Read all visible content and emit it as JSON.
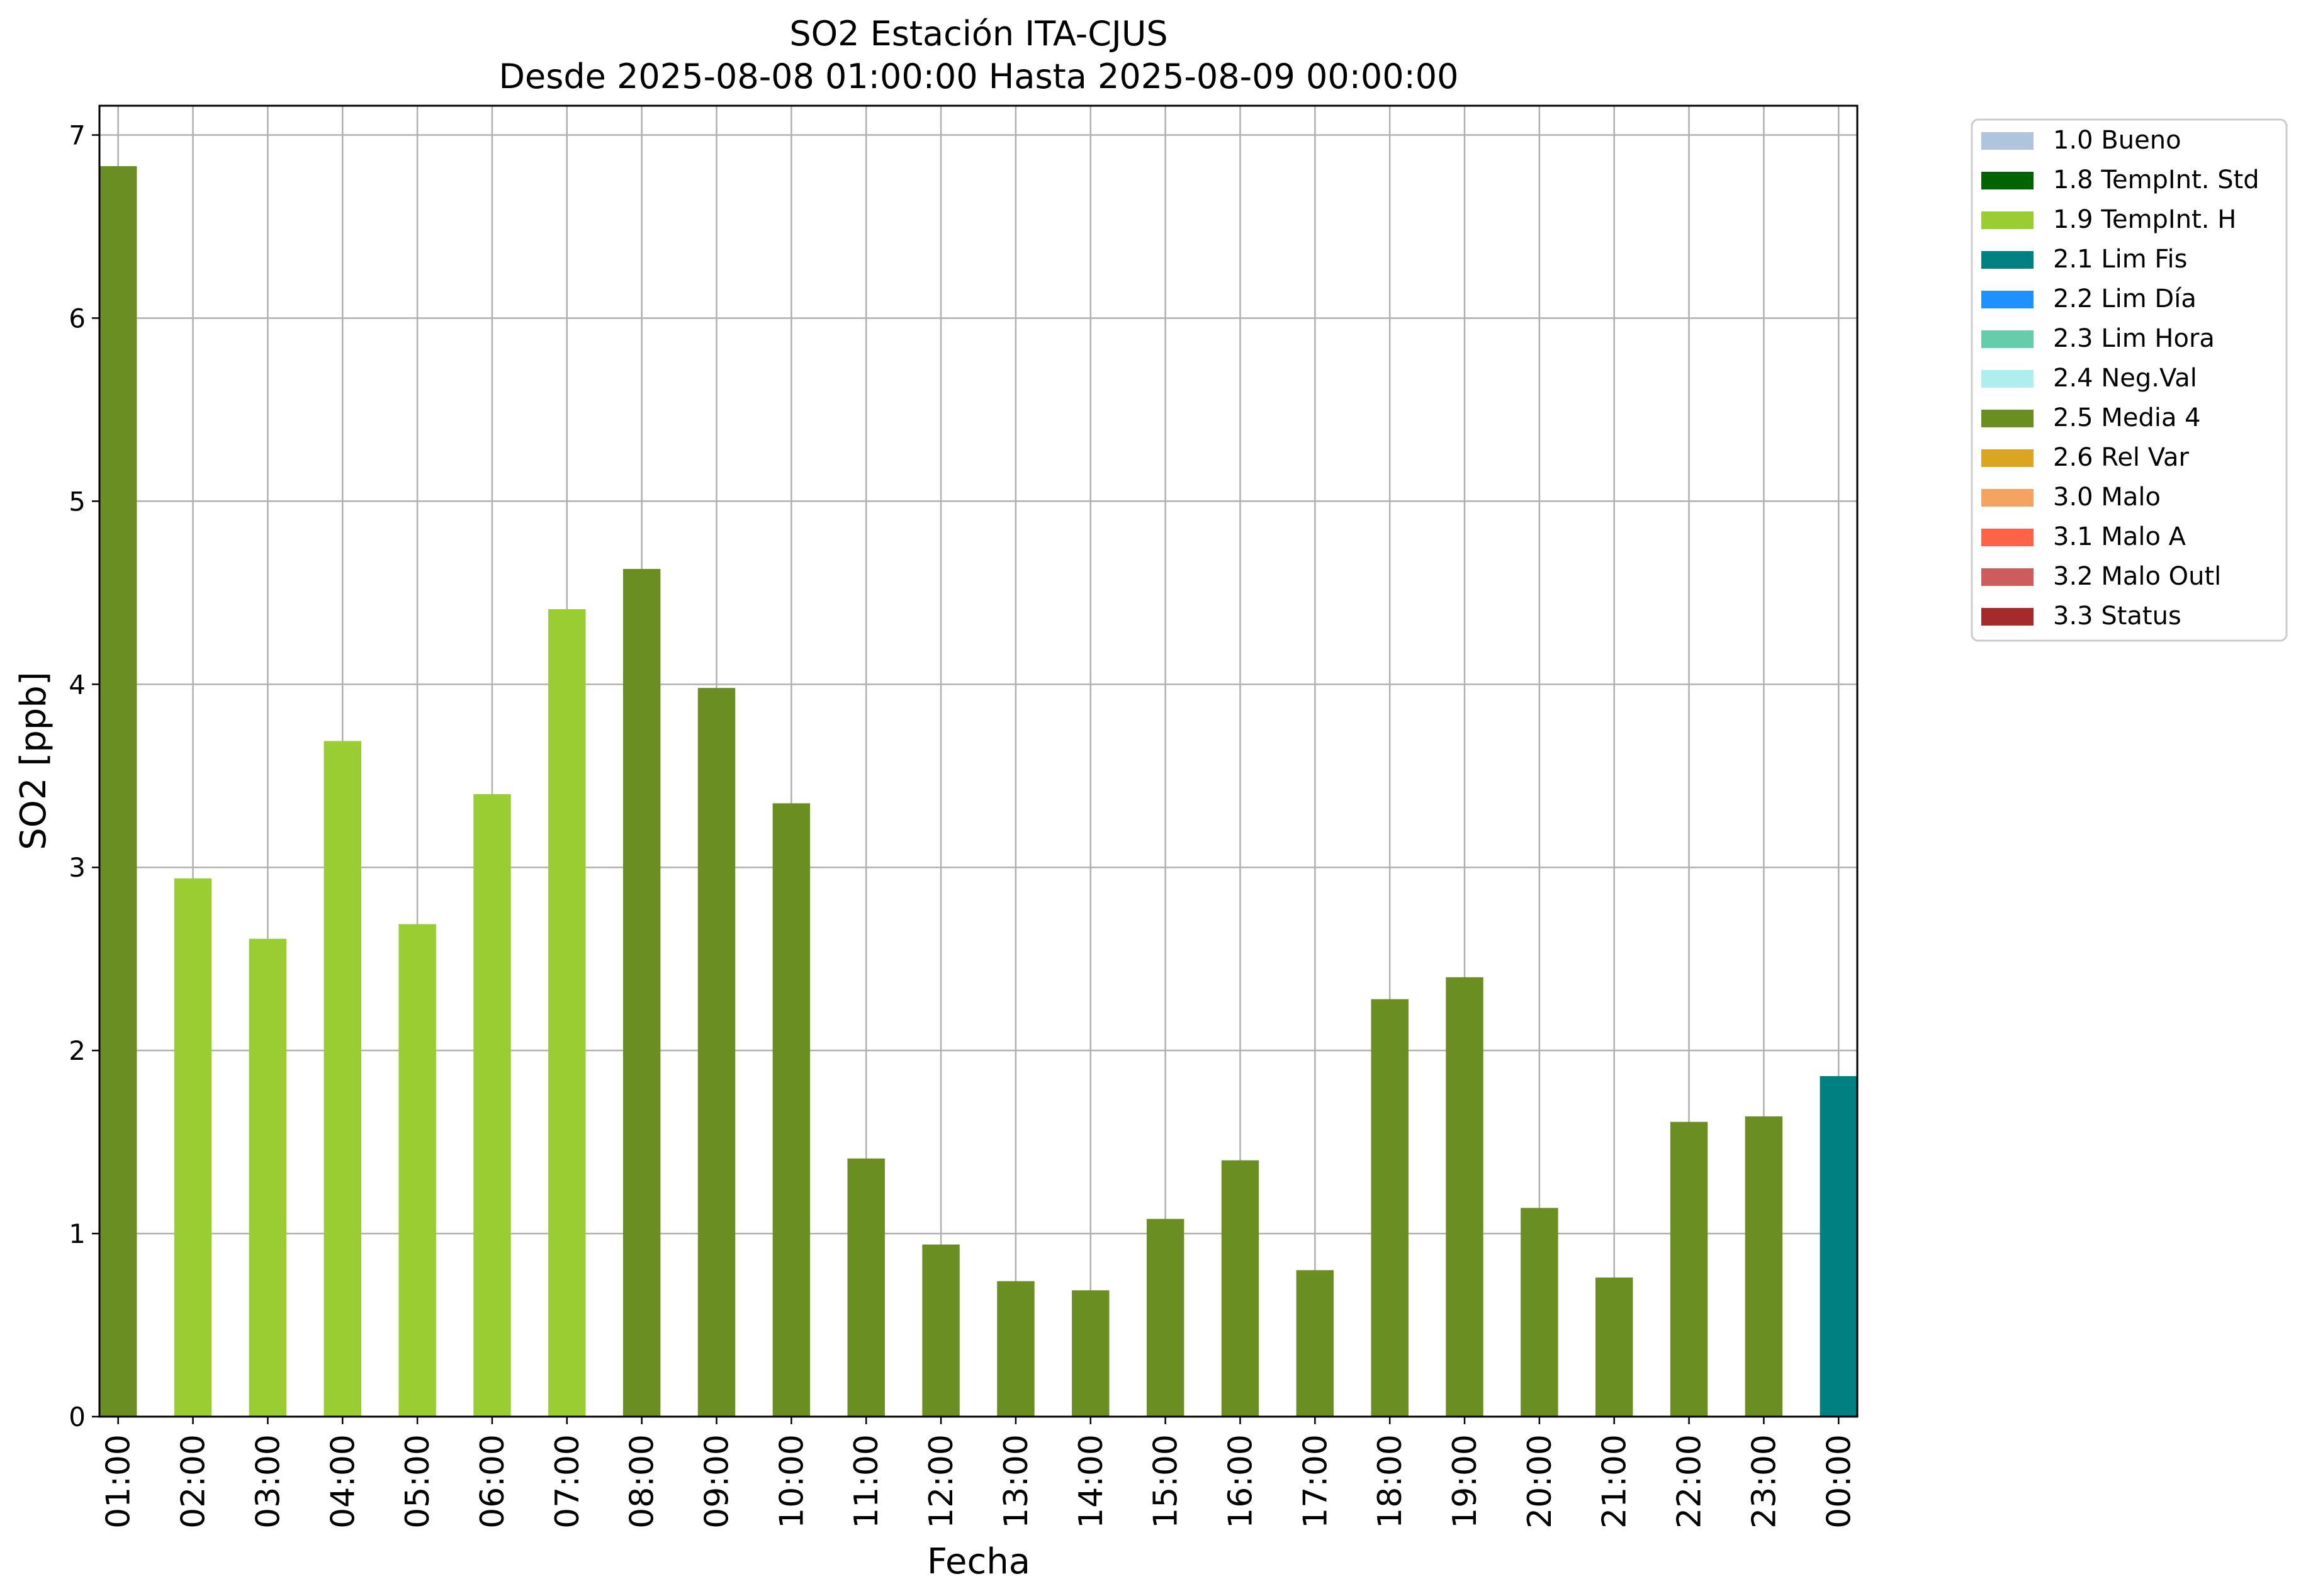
{
  "chart_data": {
    "type": "bar",
    "title_line1": "SO2 Estación ITA-CJUS",
    "title_line2": "Desde 2025-08-08 01:00:00 Hasta 2025-08-09 00:00:00",
    "xlabel": "Fecha",
    "ylabel": "SO2 [ppb]",
    "ylim": [
      0,
      7.16
    ],
    "yticks": [
      "0",
      "1",
      "2",
      "3",
      "4",
      "5",
      "6",
      "7"
    ],
    "grid": true,
    "legend_position": "outside-right",
    "categories": [
      "01:00",
      "02:00",
      "03:00",
      "04:00",
      "05:00",
      "06:00",
      "07:00",
      "08:00",
      "09:00",
      "10:00",
      "11:00",
      "12:00",
      "13:00",
      "14:00",
      "15:00",
      "16:00",
      "17:00",
      "18:00",
      "19:00",
      "20:00",
      "21:00",
      "22:00",
      "23:00",
      "00:00"
    ],
    "values": [
      6.83,
      2.94,
      2.61,
      3.69,
      2.69,
      3.4,
      4.41,
      4.63,
      3.98,
      3.35,
      1.41,
      0.94,
      0.74,
      0.69,
      1.08,
      1.4,
      0.8,
      2.28,
      2.4,
      1.14,
      0.76,
      1.61,
      1.64,
      1.86
    ],
    "flags": [
      "2.5 Media 4",
      "1.9 TempInt. H",
      "1.9 TempInt. H",
      "1.9 TempInt. H",
      "1.9 TempInt. H",
      "1.9 TempInt. H",
      "1.9 TempInt. H",
      "2.5 Media 4",
      "2.5 Media 4",
      "2.5 Media 4",
      "2.5 Media 4",
      "2.5 Media 4",
      "2.5 Media 4",
      "2.5 Media 4",
      "2.5 Media 4",
      "2.5 Media 4",
      "2.5 Media 4",
      "2.5 Media 4",
      "2.5 Media 4",
      "2.5 Media 4",
      "2.5 Media 4",
      "2.5 Media 4",
      "2.5 Media 4",
      "2.1 Lim Fis"
    ],
    "legend": [
      {
        "label": "1.0 Bueno",
        "color": "#b0c4de"
      },
      {
        "label": "1.8 TempInt. Std",
        "color": "#006400"
      },
      {
        "label": "1.9 TempInt. H",
        "color": "#9acd32"
      },
      {
        "label": "2.1 Lim Fis",
        "color": "#008080"
      },
      {
        "label": "2.2 Lim Día",
        "color": "#1e90ff"
      },
      {
        "label": "2.3 Lim Hora",
        "color": "#66cdaa"
      },
      {
        "label": "2.4 Neg.Val",
        "color": "#afeeee"
      },
      {
        "label": "2.5 Media 4",
        "color": "#6b8e23"
      },
      {
        "label": "2.6 Rel Var",
        "color": "#daa520"
      },
      {
        "label": "3.0 Malo",
        "color": "#f4a460"
      },
      {
        "label": "3.1 Malo A",
        "color": "#ff6347"
      },
      {
        "label": "3.2 Malo Outl",
        "color": "#cd5c5c"
      },
      {
        "label": "3.3 Status",
        "color": "#a52a2a"
      }
    ]
  }
}
